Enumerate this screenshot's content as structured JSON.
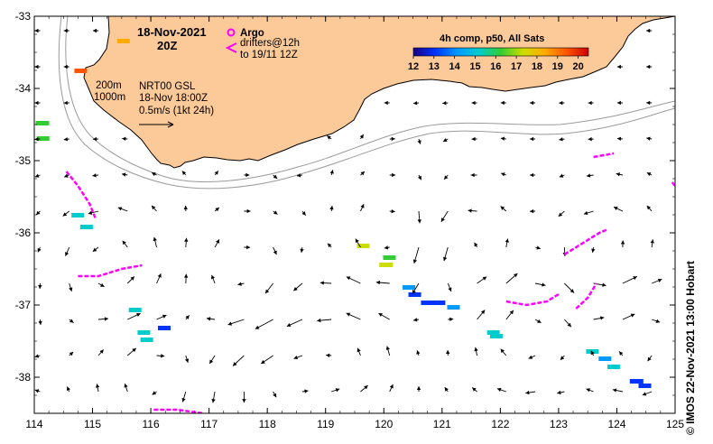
{
  "map": {
    "lon_range": [
      114,
      125
    ],
    "lat_range": [
      -38.5,
      -33
    ],
    "lon_ticks": [
      "114",
      "115",
      "116",
      "117",
      "118",
      "119",
      "120",
      "121",
      "122",
      "123",
      "124",
      "125"
    ],
    "lat_ticks": [
      "-33",
      "-34",
      "-35",
      "-36",
      "-37",
      "-38"
    ],
    "colors": {
      "land": "#fcc999",
      "drifter": "#ff00ff",
      "contour": "#9a9a9a",
      "vector": "#000000",
      "argo": "#ff00ff"
    }
  },
  "header": {
    "date": "18-Nov-2021",
    "time": "20Z"
  },
  "legend": {
    "argo_label": "Argo",
    "drifters_line1": "drifters@12h",
    "drifters_line2": "to 19/11 12Z",
    "contour_200": "200m",
    "contour_1000": "1000m",
    "product_line1": "NRT00 GSL",
    "product_line2": "18-Nov 18:00Z",
    "scale_label": "0.5m/s (1kt 24h)"
  },
  "colorbar": {
    "title": "4h comp, p50, All Sats",
    "ticks": [
      "12",
      "13",
      "14",
      "15",
      "16",
      "17",
      "18",
      "19",
      "20"
    ],
    "range": [
      12,
      20.5
    ],
    "gradient": [
      "#1a0080",
      "#0033ff",
      "#0099ff",
      "#00cccc",
      "#33cc33",
      "#ccdd00",
      "#ffaa00",
      "#ff5500",
      "#cc0000"
    ]
  },
  "credit": "© IMOS 22-Nov-2021 13:00 Hobart",
  "sst_patches": [
    {
      "lon": 114.1,
      "lat": -34.5,
      "t": 16.5
    },
    {
      "lon": 114.12,
      "lat": -34.65,
      "t": 16.0
    },
    {
      "lon": 115.5,
      "lat": -33.35,
      "t": 18.0
    },
    {
      "lon": 114.75,
      "lat": -33.7,
      "t": 19.0
    },
    {
      "lon": 114.7,
      "lat": -35.75,
      "t": 14.8
    },
    {
      "lon": 114.85,
      "lat": -35.85,
      "t": 15.2
    },
    {
      "lon": 115.7,
      "lat": -37.05,
      "t": 15.5
    },
    {
      "lon": 115.85,
      "lat": -37.3,
      "t": 15.0
    },
    {
      "lon": 115.9,
      "lat": -37.45,
      "t": 15.1
    },
    {
      "lon": 119.6,
      "lat": -36.2,
      "t": 16.8
    },
    {
      "lon": 120.05,
      "lat": -36.3,
      "t": 16.5
    },
    {
      "lon": 120.0,
      "lat": -36.45,
      "t": 17.0
    },
    {
      "lon": 120.4,
      "lat": -36.7,
      "t": 14.5
    },
    {
      "lon": 120.5,
      "lat": -36.85,
      "t": 13.0
    },
    {
      "lon": 120.7,
      "lat": -36.9,
      "t": 12.8
    },
    {
      "lon": 120.9,
      "lat": -36.95,
      "t": 13.4
    },
    {
      "lon": 121.15,
      "lat": -36.95,
      "t": 14.5
    },
    {
      "lon": 121.85,
      "lat": -37.35,
      "t": 15.3
    },
    {
      "lon": 121.9,
      "lat": -37.45,
      "t": 15.0
    },
    {
      "lon": 123.55,
      "lat": -37.6,
      "t": 15.0
    },
    {
      "lon": 123.75,
      "lat": -37.75,
      "t": 14.6
    },
    {
      "lon": 123.9,
      "lat": -37.8,
      "t": 15.2
    },
    {
      "lon": 124.3,
      "lat": -38.05,
      "t": 13.5
    },
    {
      "lon": 124.45,
      "lat": -38.05,
      "t": 13.0
    },
    {
      "lon": 116.2,
      "lat": -37.3,
      "t": 13.5
    }
  ]
}
